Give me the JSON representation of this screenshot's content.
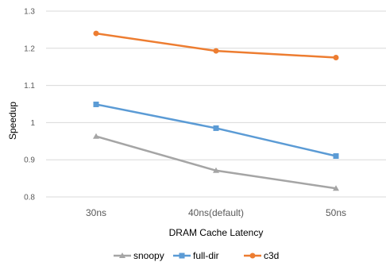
{
  "chart_data": {
    "type": "line",
    "categories": [
      "30ns",
      "40ns(default)",
      "50ns"
    ],
    "series": [
      {
        "name": "snoopy",
        "values": [
          0.963,
          0.871,
          0.823
        ],
        "color": "#A5A5A5",
        "marker": "triangle"
      },
      {
        "name": "full-dir",
        "values": [
          1.049,
          0.985,
          0.91
        ],
        "color": "#5B9BD5",
        "marker": "square"
      },
      {
        "name": "c3d",
        "values": [
          1.24,
          1.193,
          1.175
        ],
        "color": "#ED7D31",
        "marker": "circle"
      }
    ],
    "xlabel": "DRAM Cache Latency",
    "ylabel": "Speedup",
    "ylim": [
      0.75,
      1.3
    ],
    "yticks": [
      "0.8",
      "0.9",
      "1",
      "1.1",
      "1.2",
      "1.3"
    ],
    "grid": true,
    "legend_position": "bottom",
    "gridline_color": "#D9D9D9"
  }
}
